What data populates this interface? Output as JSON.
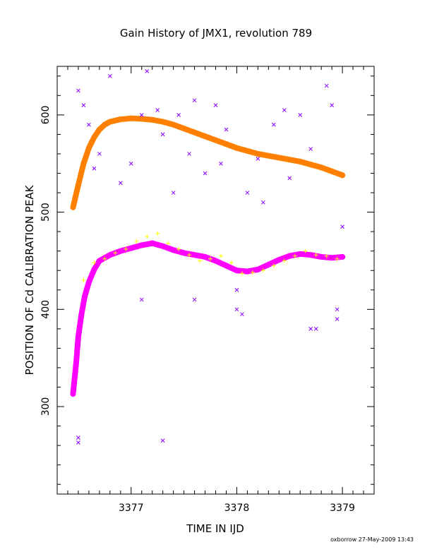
{
  "chart_data": {
    "type": "scatter",
    "title": "Gain History of JMX1, revolution 789",
    "xlabel": "TIME IN IJD",
    "ylabel": "POSITION OF Cd CALIBRATION PEAK",
    "xlim": [
      3376.3,
      3379.3
    ],
    "ylim": [
      210,
      650
    ],
    "xticks": [
      3377,
      3378,
      3379
    ],
    "xtick_labels": [
      "3377",
      "3378",
      "3379"
    ],
    "yticks": [
      300,
      400,
      500,
      600
    ],
    "ytick_labels": [
      "300",
      "400",
      "500",
      "600"
    ],
    "grid": false,
    "legend": "none",
    "footer": "oxborrow 27-May-2009 13:43",
    "series": [
      {
        "marker": "line-of-circles",
        "color": "#ff8000",
        "x": [
          3376.45,
          3376.5,
          3376.55,
          3376.6,
          3376.65,
          3376.7,
          3376.75,
          3376.8,
          3376.9,
          3377.0,
          3377.1,
          3377.2,
          3377.3,
          3377.4,
          3377.5,
          3377.6,
          3377.7,
          3377.8,
          3377.9,
          3378.0,
          3378.1,
          3378.2,
          3378.3,
          3378.4,
          3378.5,
          3378.6,
          3378.7,
          3378.8,
          3378.9,
          3379.0
        ],
        "y": [
          505,
          528,
          550,
          566,
          577,
          585,
          590,
          593,
          595.5,
          596.5,
          596,
          595,
          593,
          590,
          586,
          582,
          578,
          574,
          570,
          566,
          563,
          560,
          558,
          556,
          554,
          552,
          549,
          546,
          542,
          538
        ]
      },
      {
        "marker": "line-of-circles",
        "color": "#ff00ff",
        "x": [
          3376.45,
          3376.48,
          3376.5,
          3376.53,
          3376.56,
          3376.6,
          3376.65,
          3376.7,
          3376.8,
          3376.9,
          3377.0,
          3377.1,
          3377.2,
          3377.3,
          3377.4,
          3377.5,
          3377.6,
          3377.7,
          3377.8,
          3377.9,
          3378.0,
          3378.1,
          3378.2,
          3378.3,
          3378.4,
          3378.5,
          3378.6,
          3378.7,
          3378.8,
          3378.9,
          3379.0
        ],
        "y": [
          313,
          345,
          372,
          395,
          413,
          428,
          441,
          450,
          456,
          460,
          463,
          466,
          468,
          465,
          461,
          458,
          456,
          454,
          450,
          445,
          440,
          439,
          441,
          446,
          451,
          455,
          457,
          456,
          454,
          453,
          454
        ]
      },
      {
        "marker": "plus",
        "color": "#ffff00",
        "x": [
          3376.55,
          3376.65,
          3376.75,
          3376.85,
          3376.95,
          3377.05,
          3377.15,
          3377.25,
          3377.35,
          3377.45,
          3377.55,
          3377.65,
          3377.75,
          3377.85,
          3377.95,
          3378.05,
          3378.15,
          3378.25,
          3378.35,
          3378.45,
          3378.55,
          3378.65,
          3378.75,
          3378.85,
          3378.95
        ],
        "y": [
          430,
          448,
          452,
          458,
          462,
          470,
          475,
          478,
          468,
          462,
          456,
          450,
          452,
          455,
          448,
          437,
          438,
          440,
          445,
          450,
          455,
          460,
          456,
          455,
          452
        ]
      },
      {
        "marker": "x",
        "color": "#8a00ff",
        "x": [
          3376.5,
          3376.55,
          3376.6,
          3376.65,
          3376.7,
          3376.8,
          3376.9,
          3377.0,
          3377.1,
          3377.15,
          3377.25,
          3377.3,
          3377.4,
          3377.45,
          3377.55,
          3377.6,
          3377.7,
          3377.8,
          3377.85,
          3377.9,
          3378.0,
          3378.05,
          3378.1,
          3378.2,
          3378.25,
          3378.35,
          3378.45,
          3378.5,
          3378.6,
          3378.7,
          3378.75,
          3378.85,
          3378.9,
          3378.95,
          3379.0,
          3376.5,
          3376.5,
          3377.3,
          3377.1,
          3377.6,
          3378.0,
          3378.7,
          3378.95
        ],
        "y": [
          625,
          610,
          590,
          545,
          560,
          640,
          530,
          550,
          600,
          645,
          605,
          580,
          520,
          600,
          560,
          615,
          540,
          610,
          550,
          585,
          420,
          395,
          520,
          555,
          510,
          590,
          605,
          535,
          600,
          565,
          380,
          630,
          610,
          390,
          485,
          268,
          263,
          265,
          410,
          410,
          400,
          380,
          400
        ]
      }
    ]
  }
}
